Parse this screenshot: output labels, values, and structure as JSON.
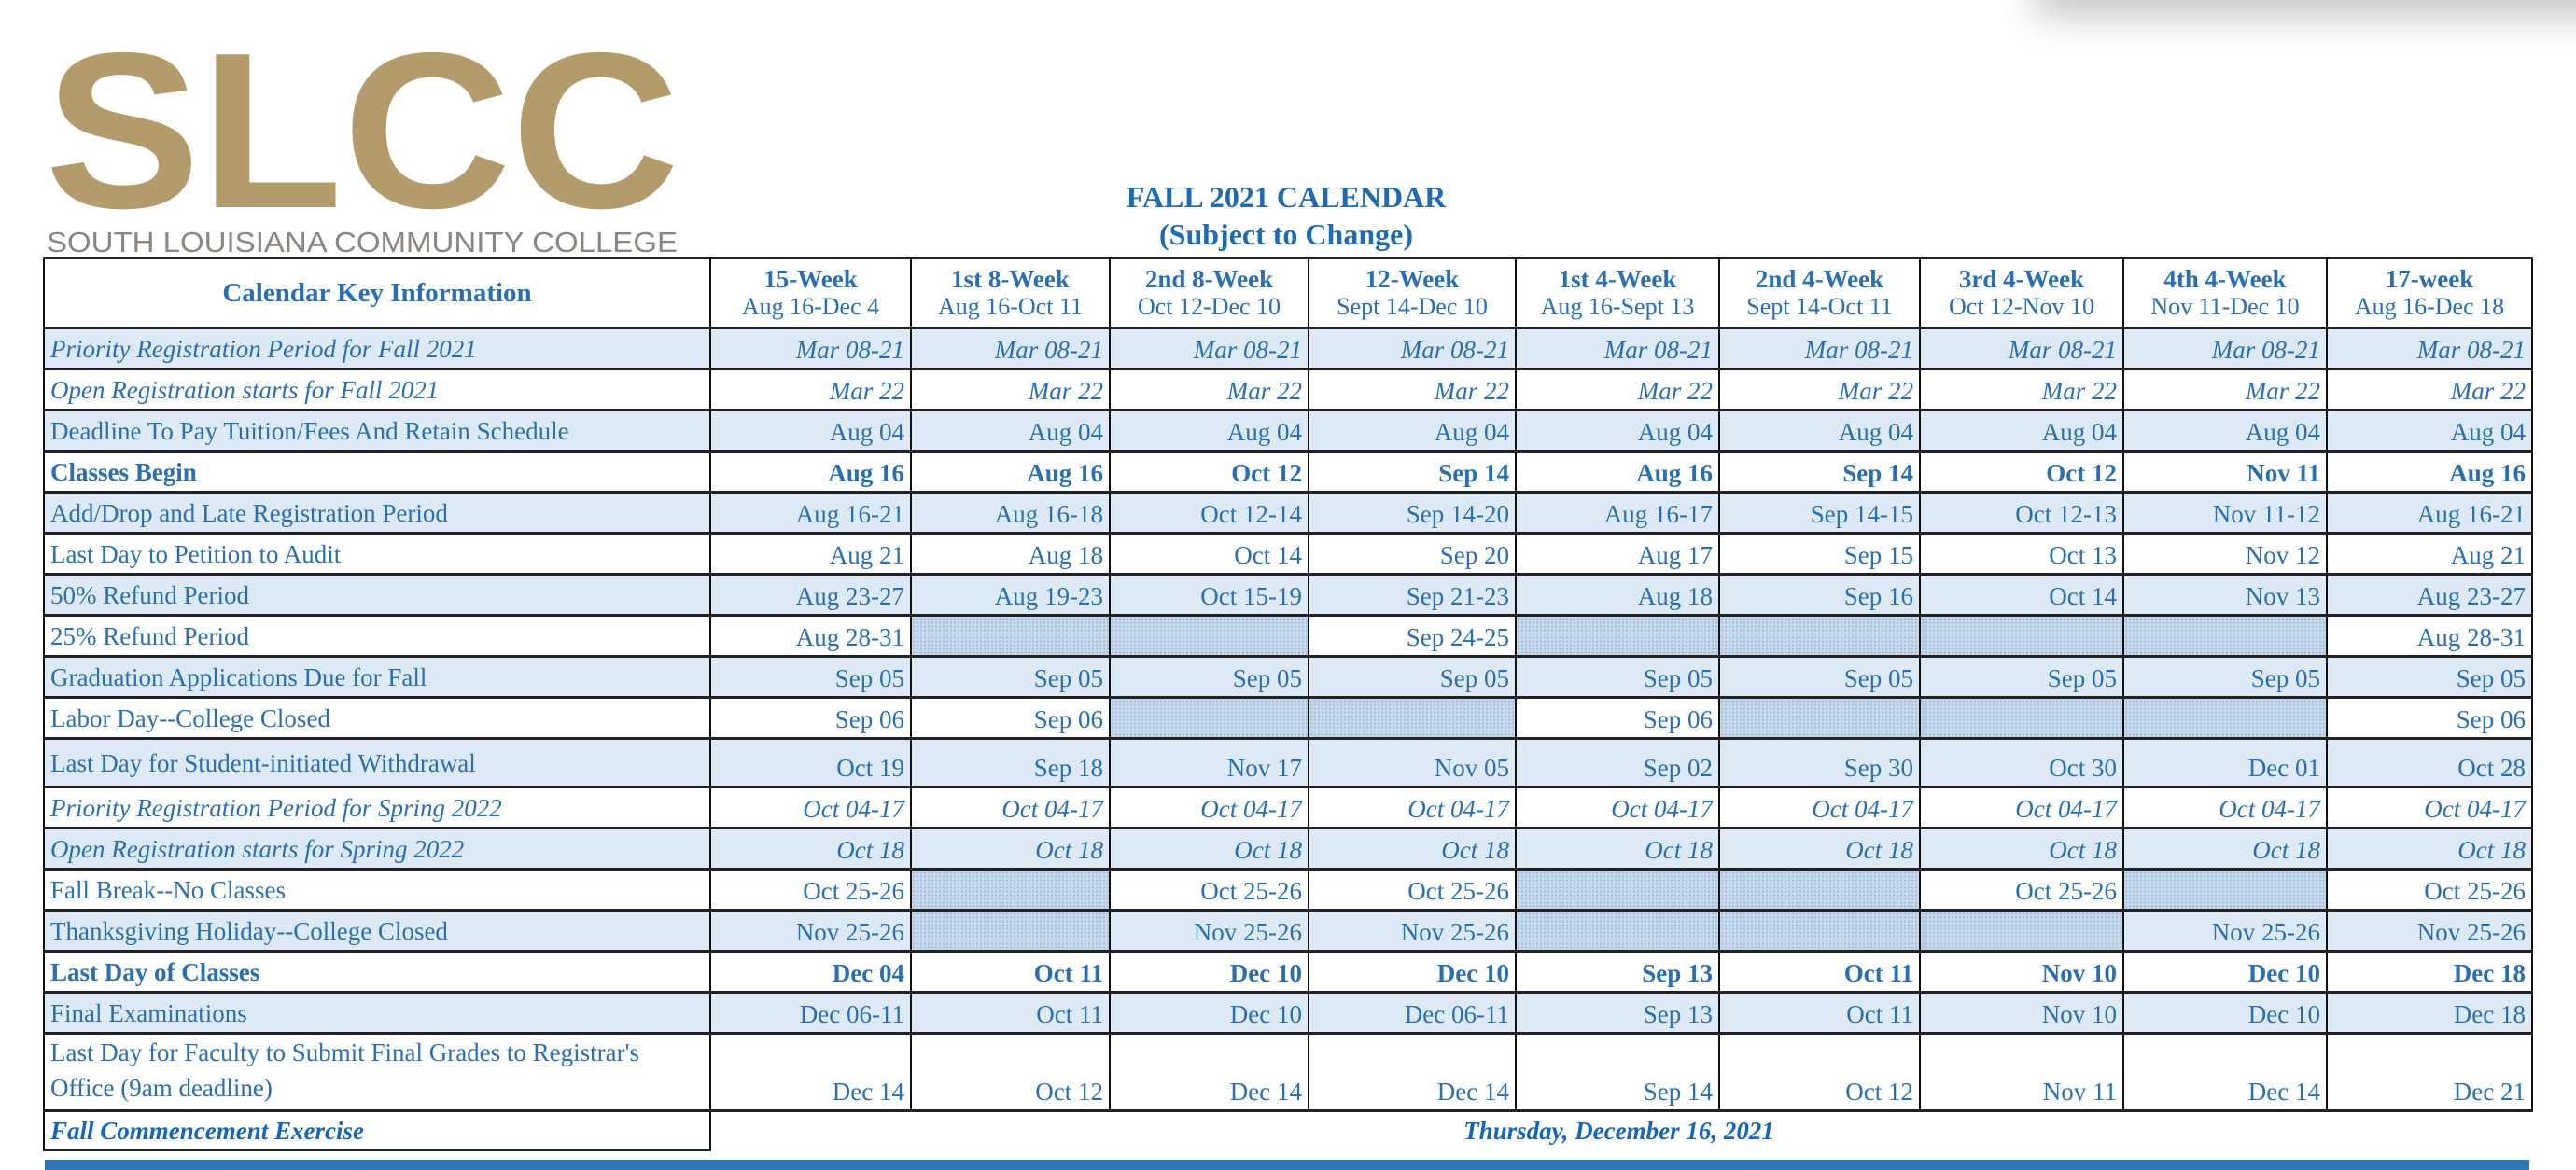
{
  "logo": {
    "mark": "SLCC",
    "name": "SOUTH LOUISIANA COMMUNITY COLLEGE",
    "color": "#b39b6c"
  },
  "title": "FALL 2021 CALENDAR",
  "subtitle": "(Subject to Change)",
  "colors": {
    "text": "#2a6fb0",
    "row_shade": "#ddeaf6",
    "bottom_bar": "#2e75b6"
  },
  "table": {
    "key_header": "Calendar Key Information",
    "columns": [
      {
        "name": "15-Week",
        "range": "Aug 16-Dec 4"
      },
      {
        "name": "1st 8-Week",
        "range": "Aug 16-Oct 11"
      },
      {
        "name": "2nd 8-Week",
        "range": "Oct 12-Dec 10"
      },
      {
        "name": "12-Week",
        "range": "Sept 14-Dec 10"
      },
      {
        "name": "1st 4-Week",
        "range": "Aug 16-Sept 13"
      },
      {
        "name": "2nd 4-Week",
        "range": "Sept 14-Oct 11"
      },
      {
        "name": "3rd 4-Week",
        "range": "Oct 12-Nov 10"
      },
      {
        "name": "4th 4-Week",
        "range": "Nov 11-Dec 10"
      },
      {
        "name": "17-week",
        "range": "Aug 16-Dec 18"
      }
    ],
    "rows": [
      {
        "label": "Priority Registration Period for Fall 2021",
        "style": "italic",
        "values": [
          "Mar 08-21",
          "Mar 08-21",
          "Mar 08-21",
          "Mar 08-21",
          "Mar 08-21",
          "Mar 08-21",
          "Mar 08-21",
          "Mar 08-21",
          "Mar 08-21"
        ]
      },
      {
        "label": "Open Registration starts for Fall 2021",
        "style": "italic",
        "values": [
          "Mar 22",
          "Mar 22",
          "Mar 22",
          "Mar 22",
          "Mar 22",
          "Mar 22",
          "Mar 22",
          "Mar 22",
          "Mar 22"
        ]
      },
      {
        "label": "Deadline To Pay Tuition/Fees And Retain Schedule",
        "style": "normal",
        "values": [
          "Aug 04",
          "Aug 04",
          "Aug 04",
          "Aug 04",
          "Aug 04",
          "Aug 04",
          "Aug 04",
          "Aug 04",
          "Aug 04"
        ]
      },
      {
        "label": "Classes Begin",
        "style": "bold",
        "values": [
          "Aug 16",
          "Aug 16",
          "Oct 12",
          "Sep 14",
          "Aug 16",
          "Sep 14",
          "Oct 12",
          "Nov 11",
          "Aug 16"
        ]
      },
      {
        "label": "Add/Drop and Late Registration Period",
        "style": "normal",
        "values": [
          "Aug 16-21",
          "Aug 16-18",
          "Oct 12-14",
          "Sep 14-20",
          "Aug 16-17",
          "Sep 14-15",
          "Oct 12-13",
          "Nov 11-12",
          "Aug 16-21"
        ]
      },
      {
        "label": "Last Day to Petition to Audit",
        "style": "normal",
        "values": [
          "Aug 21",
          "Aug 18",
          "Oct 14",
          "Sep 20",
          "Aug 17",
          "Sep 15",
          "Oct 13",
          "Nov 12",
          "Aug 21"
        ]
      },
      {
        "label": "50% Refund Period",
        "style": "normal",
        "values": [
          "Aug 23-27",
          "Aug 19-23",
          "Oct 15-19",
          "Sep 21-23",
          "Aug 18",
          "Sep 16",
          "Oct 14",
          "Nov 13",
          "Aug 23-27"
        ]
      },
      {
        "label": "25% Refund Period",
        "style": "normal",
        "values": [
          "Aug 28-31",
          null,
          null,
          "Sep 24-25",
          null,
          null,
          null,
          null,
          "Aug 28-31"
        ]
      },
      {
        "label": "Graduation Applications Due for Fall",
        "style": "normal",
        "values": [
          "Sep 05",
          "Sep 05",
          "Sep 05",
          "Sep 05",
          "Sep 05",
          "Sep 05",
          "Sep 05",
          "Sep 05",
          "Sep 05"
        ]
      },
      {
        "label": "Labor Day--College Closed",
        "style": "normal",
        "values": [
          "Sep 06",
          "Sep 06",
          null,
          null,
          "Sep 06",
          null,
          null,
          null,
          "Sep 06"
        ]
      },
      {
        "label": "Last Day for Student-initiated Withdrawal",
        "style": "normal",
        "values": [
          "Oct 19",
          "Sep 18",
          "Nov 17",
          "Nov 05",
          "Sep 02",
          "Sep 30",
          "Oct 30",
          "Dec 01",
          "Oct 28"
        ]
      },
      {
        "label": "Priority Registration Period for Spring 2022",
        "style": "italic",
        "values": [
          "Oct 04-17",
          "Oct 04-17",
          "Oct 04-17",
          "Oct 04-17",
          "Oct 04-17",
          "Oct 04-17",
          "Oct 04-17",
          "Oct 04-17",
          "Oct 04-17"
        ]
      },
      {
        "label": "Open Registration starts for Spring 2022",
        "style": "italic",
        "values": [
          "Oct 18",
          "Oct 18",
          "Oct 18",
          "Oct 18",
          "Oct 18",
          "Oct 18",
          "Oct 18",
          "Oct 18",
          "Oct 18"
        ]
      },
      {
        "label": "Fall Break--No Classes",
        "style": "normal",
        "values": [
          "Oct 25-26",
          null,
          "Oct 25-26",
          "Oct 25-26",
          null,
          null,
          "Oct 25-26",
          null,
          "Oct 25-26"
        ]
      },
      {
        "label": "Thanksgiving Holiday--College Closed",
        "style": "normal",
        "values": [
          "Nov 25-26",
          null,
          "Nov 25-26",
          "Nov 25-26",
          null,
          null,
          null,
          "Nov 25-26",
          "Nov 25-26"
        ]
      },
      {
        "label": "Last Day of Classes",
        "style": "bold",
        "values": [
          "Dec 04",
          "Oct 11",
          "Dec 10",
          "Dec 10",
          "Sep 13",
          "Oct 11",
          "Nov 10",
          "Dec 10",
          "Dec 18"
        ]
      },
      {
        "label": "Final Examinations",
        "style": "normal",
        "values": [
          "Dec 06-11",
          "Oct 11",
          "Dec 10",
          "Dec 06-11",
          "Sep 13",
          "Oct 11",
          "Nov 10",
          "Dec 10",
          "Dec 18"
        ]
      },
      {
        "label": "Last Day for Faculty to Submit Final Grades to Registrar's Office (9am deadline)",
        "style": "normal",
        "values": [
          "Dec 14",
          "Oct 12",
          "Dec 14",
          "Dec 14",
          "Sep 14",
          "Oct 12",
          "Nov 11",
          "Dec 14",
          "Dec 21"
        ]
      }
    ],
    "commencement": {
      "label": "Fall Commencement Exercise",
      "date": "Thursday, December 16, 2021"
    }
  }
}
